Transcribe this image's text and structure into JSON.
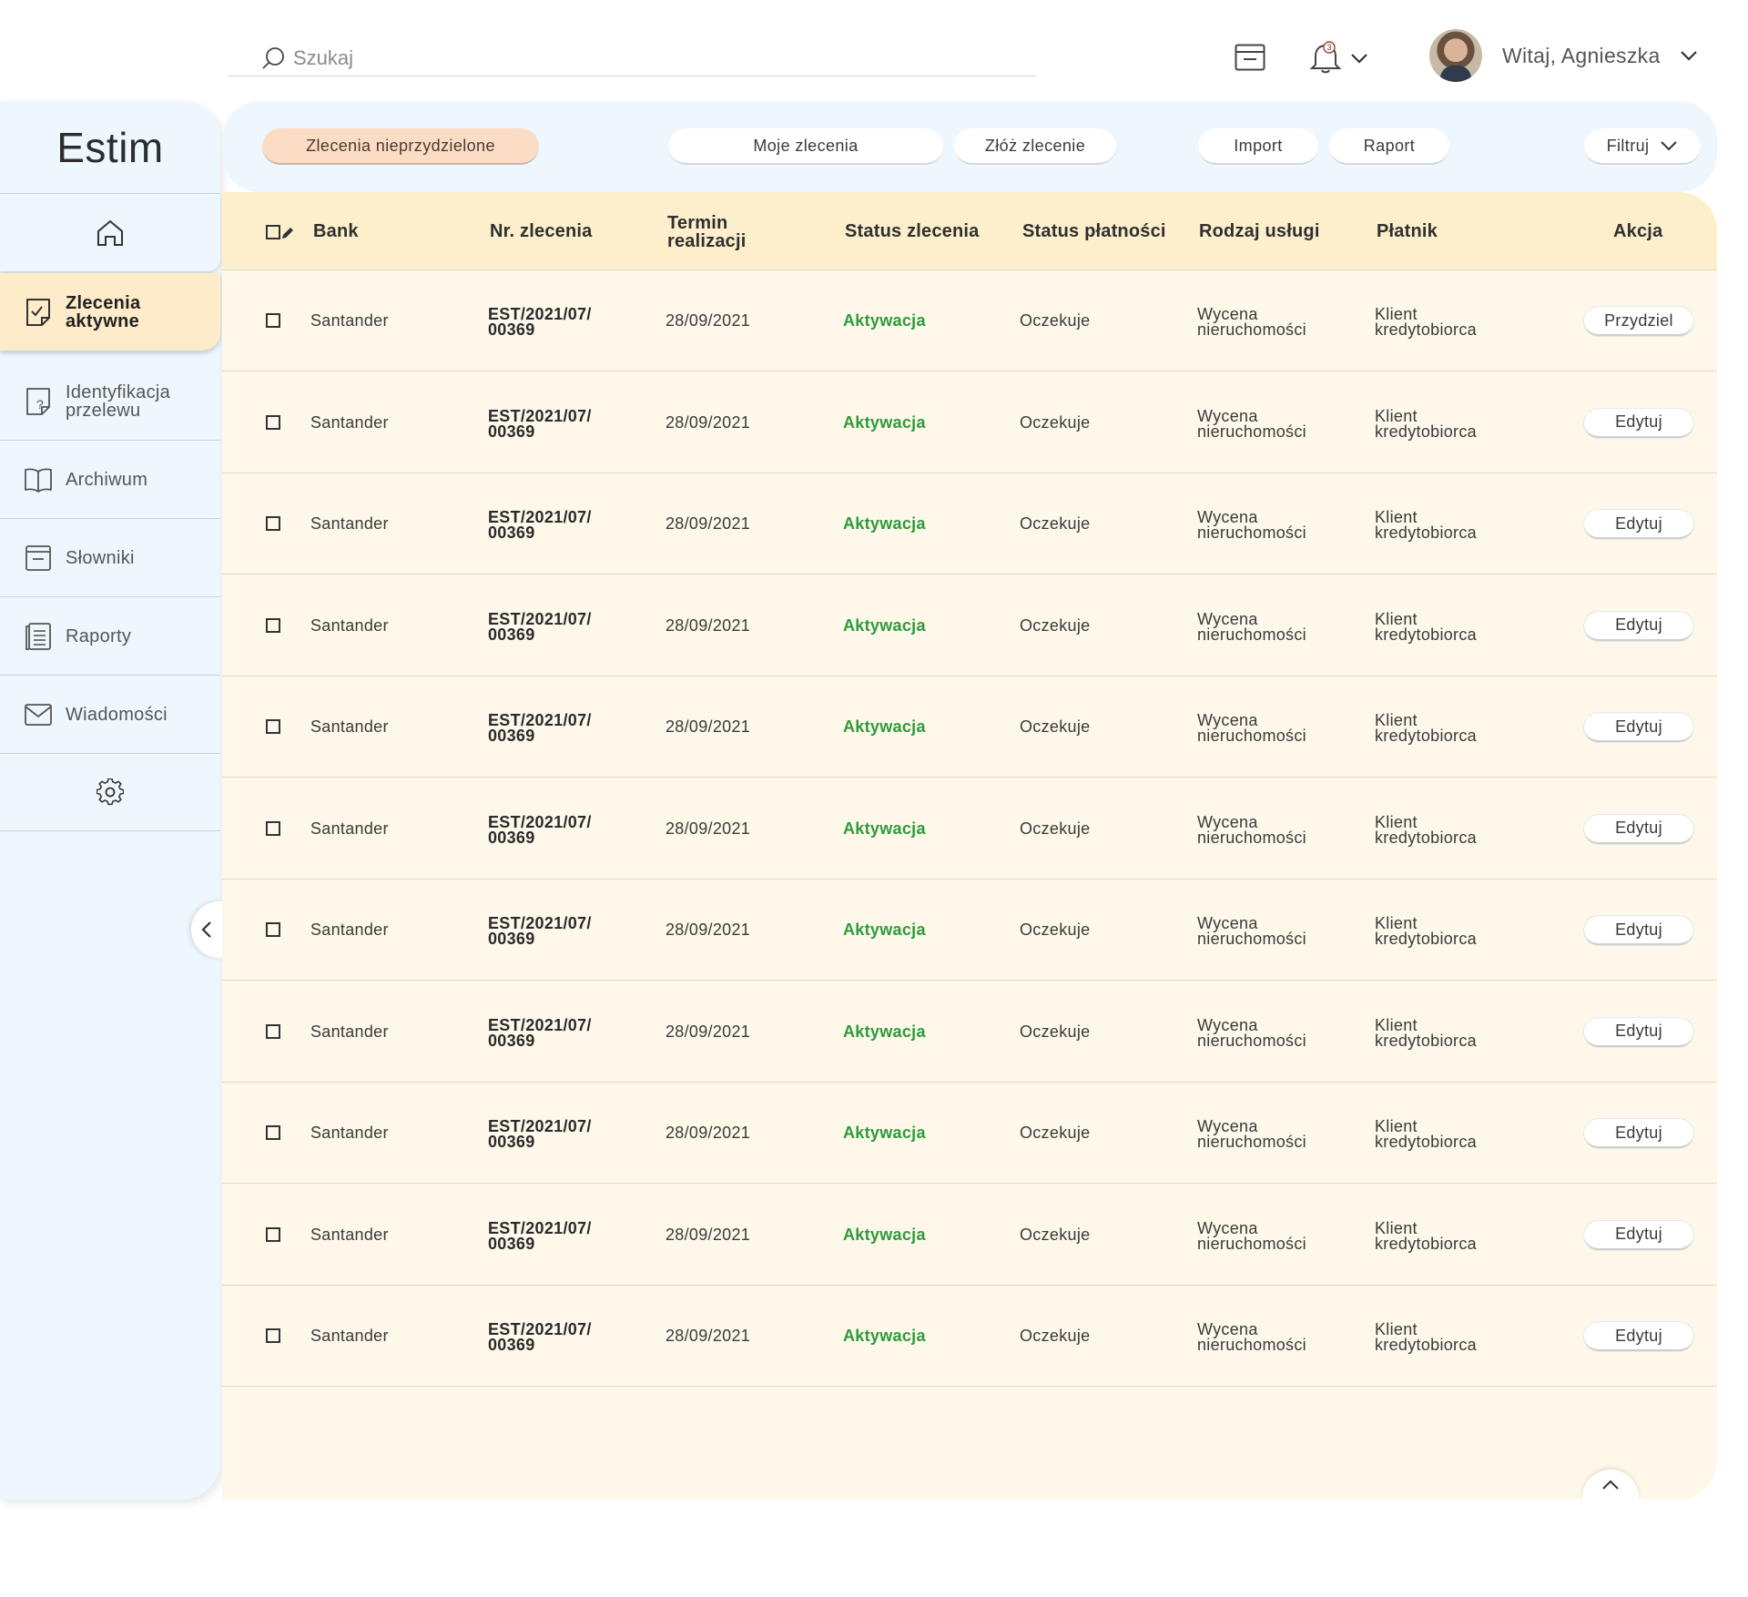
{
  "search": {
    "placeholder": "Szukaj"
  },
  "header": {
    "notification_count": "3",
    "greeting": "Witaj, Agnieszka"
  },
  "app": {
    "title": "Estim"
  },
  "sidebar": {
    "items": [
      {
        "label_line1": "Zlecenia",
        "label_line2": "aktywne",
        "icon": "document-check-icon",
        "active": true
      },
      {
        "label_line1": "Identyfikacja",
        "label_line2": "przelewu",
        "icon": "document-question-icon",
        "active": false
      },
      {
        "label_line1": "Archiwum",
        "label_line2": "",
        "icon": "book-icon",
        "active": false
      },
      {
        "label_line1": "Słowniki",
        "label_line2": "",
        "icon": "dictionary-icon",
        "active": false
      },
      {
        "label_line1": "Raporty",
        "label_line2": "",
        "icon": "report-icon",
        "active": false
      },
      {
        "label_line1": "Wiadomości",
        "label_line2": "",
        "icon": "envelope-icon",
        "active": false
      }
    ]
  },
  "toolbar": {
    "unassigned": "Zlecenia nieprzydzielone",
    "my_orders": "Moje zlecenia",
    "place_order": "Złóż zlecenie",
    "import": "Import",
    "report": "Raport",
    "filter": "Filtruj"
  },
  "table": {
    "headers": {
      "bank": "Bank",
      "order_no": "Nr. zlecenia",
      "deadline_l1": "Termin",
      "deadline_l2": "realizacji",
      "order_status": "Status zlecenia",
      "payment_status": "Status płatności",
      "service_type": "Rodzaj usługi",
      "payer": "Płatnik",
      "action": "Akcja"
    },
    "rows": [
      {
        "bank": "Santander",
        "order_l1": "EST/2021/07/",
        "order_l2": "00369",
        "deadline": "28/09/2021",
        "status": "Aktywacja",
        "payment": "Oczekuje",
        "service_l1": "Wycena",
        "service_l2": "nieruchomości",
        "payer_l1": "Klient",
        "payer_l2": "kredytobiorca",
        "action": "Przydziel"
      },
      {
        "bank": "Santander",
        "order_l1": "EST/2021/07/",
        "order_l2": "00369",
        "deadline": "28/09/2021",
        "status": "Aktywacja",
        "payment": "Oczekuje",
        "service_l1": "Wycena",
        "service_l2": "nieruchomości",
        "payer_l1": "Klient",
        "payer_l2": "kredytobiorca",
        "action": "Edytuj"
      },
      {
        "bank": "Santander",
        "order_l1": "EST/2021/07/",
        "order_l2": "00369",
        "deadline": "28/09/2021",
        "status": "Aktywacja",
        "payment": "Oczekuje",
        "service_l1": "Wycena",
        "service_l2": "nieruchomości",
        "payer_l1": "Klient",
        "payer_l2": "kredytobiorca",
        "action": "Edytuj"
      },
      {
        "bank": "Santander",
        "order_l1": "EST/2021/07/",
        "order_l2": "00369",
        "deadline": "28/09/2021",
        "status": "Aktywacja",
        "payment": "Oczekuje",
        "service_l1": "Wycena",
        "service_l2": "nieruchomości",
        "payer_l1": "Klient",
        "payer_l2": "kredytobiorca",
        "action": "Edytuj"
      },
      {
        "bank": "Santander",
        "order_l1": "EST/2021/07/",
        "order_l2": "00369",
        "deadline": "28/09/2021",
        "status": "Aktywacja",
        "payment": "Oczekuje",
        "service_l1": "Wycena",
        "service_l2": "nieruchomości",
        "payer_l1": "Klient",
        "payer_l2": "kredytobiorca",
        "action": "Edytuj"
      },
      {
        "bank": "Santander",
        "order_l1": "EST/2021/07/",
        "order_l2": "00369",
        "deadline": "28/09/2021",
        "status": "Aktywacja",
        "payment": "Oczekuje",
        "service_l1": "Wycena",
        "service_l2": "nieruchomości",
        "payer_l1": "Klient",
        "payer_l2": "kredytobiorca",
        "action": "Edytuj"
      },
      {
        "bank": "Santander",
        "order_l1": "EST/2021/07/",
        "order_l2": "00369",
        "deadline": "28/09/2021",
        "status": "Aktywacja",
        "payment": "Oczekuje",
        "service_l1": "Wycena",
        "service_l2": "nieruchomości",
        "payer_l1": "Klient",
        "payer_l2": "kredytobiorca",
        "action": "Edytuj"
      },
      {
        "bank": "Santander",
        "order_l1": "EST/2021/07/",
        "order_l2": "00369",
        "deadline": "28/09/2021",
        "status": "Aktywacja",
        "payment": "Oczekuje",
        "service_l1": "Wycena",
        "service_l2": "nieruchomości",
        "payer_l1": "Klient",
        "payer_l2": "kredytobiorca",
        "action": "Edytuj"
      },
      {
        "bank": "Santander",
        "order_l1": "EST/2021/07/",
        "order_l2": "00369",
        "deadline": "28/09/2021",
        "status": "Aktywacja",
        "payment": "Oczekuje",
        "service_l1": "Wycena",
        "service_l2": "nieruchomości",
        "payer_l1": "Klient",
        "payer_l2": "kredytobiorca",
        "action": "Edytuj"
      },
      {
        "bank": "Santander",
        "order_l1": "EST/2021/07/",
        "order_l2": "00369",
        "deadline": "28/09/2021",
        "status": "Aktywacja",
        "payment": "Oczekuje",
        "service_l1": "Wycena",
        "service_l2": "nieruchomości",
        "payer_l1": "Klient",
        "payer_l2": "kredytobiorca",
        "action": "Edytuj"
      },
      {
        "bank": "Santander",
        "order_l1": "EST/2021/07/",
        "order_l2": "00369",
        "deadline": "28/09/2021",
        "status": "Aktywacja",
        "payment": "Oczekuje",
        "service_l1": "Wycena",
        "service_l2": "nieruchomości",
        "payer_l1": "Klient",
        "payer_l2": "kredytobiorca",
        "action": "Edytuj"
      }
    ]
  },
  "colors": {
    "sidebar_bg": "#eef7fd",
    "active_item": "#fdebc9",
    "primary_button": "#fcdcc5",
    "status_green": "#2e9b3a",
    "table_bg": "#fdf8ea",
    "header_bg": "#fdefcc"
  }
}
